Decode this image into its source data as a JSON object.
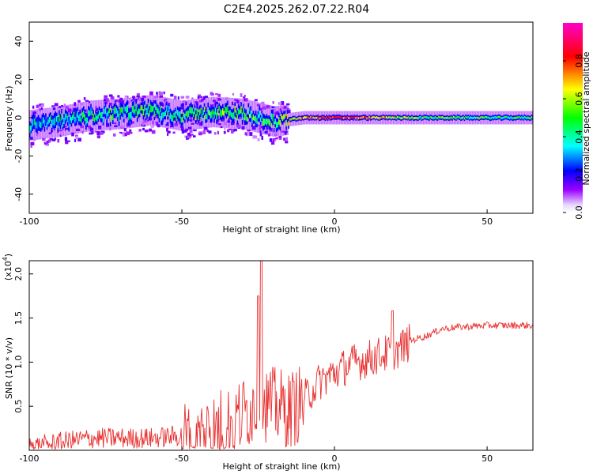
{
  "title": "C2E4.2025.262.07.22.R04",
  "chart_data": [
    {
      "type": "heatmap",
      "xlabel": "Height of straight line (km)",
      "ylabel": "Frequency (Hz)",
      "xlim": [
        -100,
        65
      ],
      "ylim": [
        -50,
        50
      ],
      "xticks": [
        -100,
        -50,
        0,
        50
      ],
      "yticks": [
        -40,
        -20,
        0,
        20,
        40
      ],
      "colorbar": {
        "label": "Normalized spectral amplitude",
        "range": [
          0,
          1
        ],
        "ticks": [
          "0.0",
          "0.2",
          "0.4",
          "0.6",
          "0.8"
        ],
        "colormap": [
          "#ffffff",
          "#9900ff",
          "#0000ff",
          "#00ffff",
          "#00ff00",
          "#ffff00",
          "#ff0000",
          "#ff00cc"
        ]
      },
      "ridge": {
        "x": [
          -100,
          -90,
          -80,
          -70,
          -60,
          -50,
          -40,
          -30,
          -20,
          -10,
          0,
          10,
          20,
          30,
          40,
          50,
          65
        ],
        "freq": [
          -4,
          -2,
          1,
          2,
          4,
          1,
          3,
          2,
          -2,
          0,
          0,
          0,
          0,
          0,
          0,
          0,
          0
        ],
        "amplitude": [
          0.35,
          0.38,
          0.42,
          0.45,
          0.45,
          0.45,
          0.5,
          0.5,
          0.45,
          0.75,
          0.85,
          0.75,
          0.6,
          0.5,
          0.5,
          0.45,
          0.45
        ]
      }
    },
    {
      "type": "line",
      "xlabel": "Height of straight line (km)",
      "ylabel": "SNR (10 * v/v)",
      "yscale_label": "(x10",
      "yscale_exp": "4",
      "xlim": [
        -100,
        65
      ],
      "ylim": [
        0,
        2.15
      ],
      "xticks": [
        -100,
        -50,
        0,
        50
      ],
      "yticks": [
        "0.5",
        "1.0",
        "1.5",
        "2.0"
      ],
      "color": "#e83030",
      "envelope": {
        "x": [
          -100,
          -90,
          -80,
          -70,
          -60,
          -50,
          -45,
          -40,
          -35,
          -30,
          -25,
          -20,
          -15,
          -10,
          -5,
          0,
          5,
          10,
          15,
          20,
          25,
          30,
          35,
          40,
          50,
          60,
          65
        ],
        "y": [
          0.05,
          0.1,
          0.15,
          0.15,
          0.15,
          0.18,
          0.22,
          0.3,
          0.35,
          0.45,
          0.6,
          0.55,
          0.5,
          0.6,
          0.8,
          0.9,
          1.0,
          1.05,
          1.1,
          1.15,
          1.25,
          1.3,
          1.38,
          1.4,
          1.42,
          1.42,
          1.42
        ]
      },
      "peaks": [
        {
          "x": -24,
          "y": 2.15
        },
        {
          "x": -25,
          "y": 1.75
        },
        {
          "x": 19,
          "y": 1.58
        }
      ]
    }
  ]
}
